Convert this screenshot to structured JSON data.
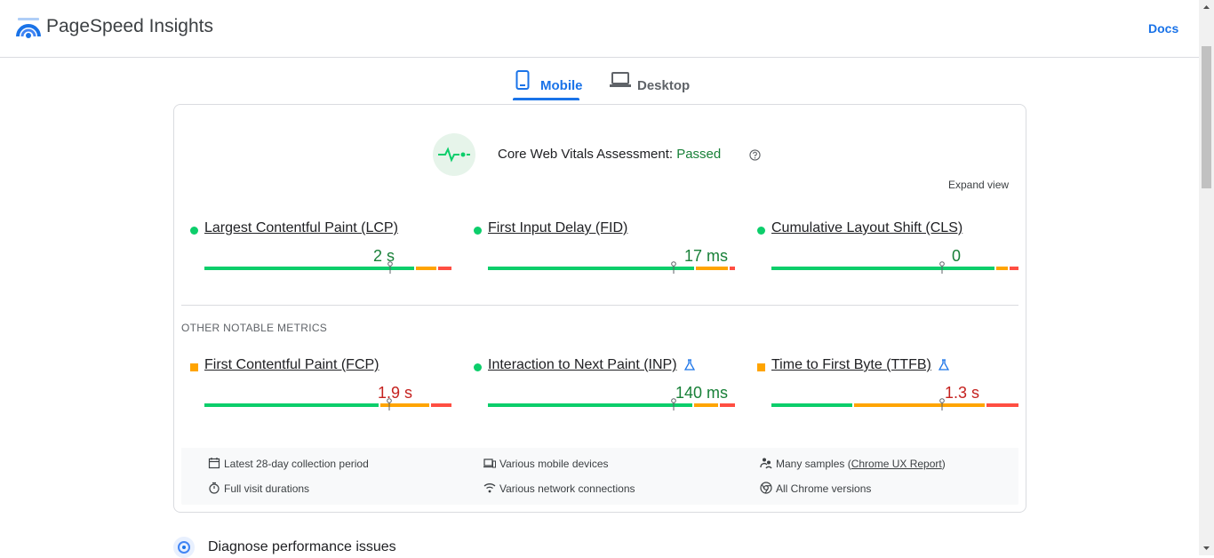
{
  "app": {
    "title": "PageSpeed Insights",
    "docs_label": "Docs"
  },
  "tabs": [
    {
      "label": "Mobile",
      "active": true
    },
    {
      "label": "Desktop",
      "active": false
    }
  ],
  "assessment": {
    "label": "Core Web Vitals Assessment: ",
    "status": "Passed",
    "expand_label": "Expand view"
  },
  "core_metrics": [
    {
      "name": "Largest Contentful Paint (LCP)",
      "value": "2 s",
      "rating": "good"
    },
    {
      "name": "First Input Delay (FID)",
      "value": "17 ms",
      "rating": "good"
    },
    {
      "name": "Cumulative Layout Shift (CLS)",
      "value": "0",
      "rating": "good"
    }
  ],
  "other_header": "OTHER NOTABLE METRICS",
  "other_metrics": [
    {
      "name": "First Contentful Paint (FCP)",
      "value": "1.9 s",
      "rating": "needs-improvement"
    },
    {
      "name": "Interaction to Next Paint (INP)",
      "value": "140 ms",
      "rating": "good"
    },
    {
      "name": "Time to First Byte (TTFB)",
      "value": "1.3 s",
      "rating": "needs-improvement"
    }
  ],
  "info": {
    "period": "Latest 28-day collection period",
    "devices": "Various mobile devices",
    "samples_prefix": "Many samples (",
    "samples_link": "Chrome UX Report",
    "samples_suffix": ")",
    "durations": "Full visit durations",
    "network": "Various network connections",
    "chrome": "All Chrome versions"
  },
  "diagnose": {
    "title": "Diagnose performance issues"
  },
  "colors": {
    "good": "#0cce6b",
    "average": "#ffa400",
    "poor": "#ff4e42",
    "accent": "#1a73e8",
    "good_text": "#188038",
    "avg_text": "#c5221f"
  }
}
